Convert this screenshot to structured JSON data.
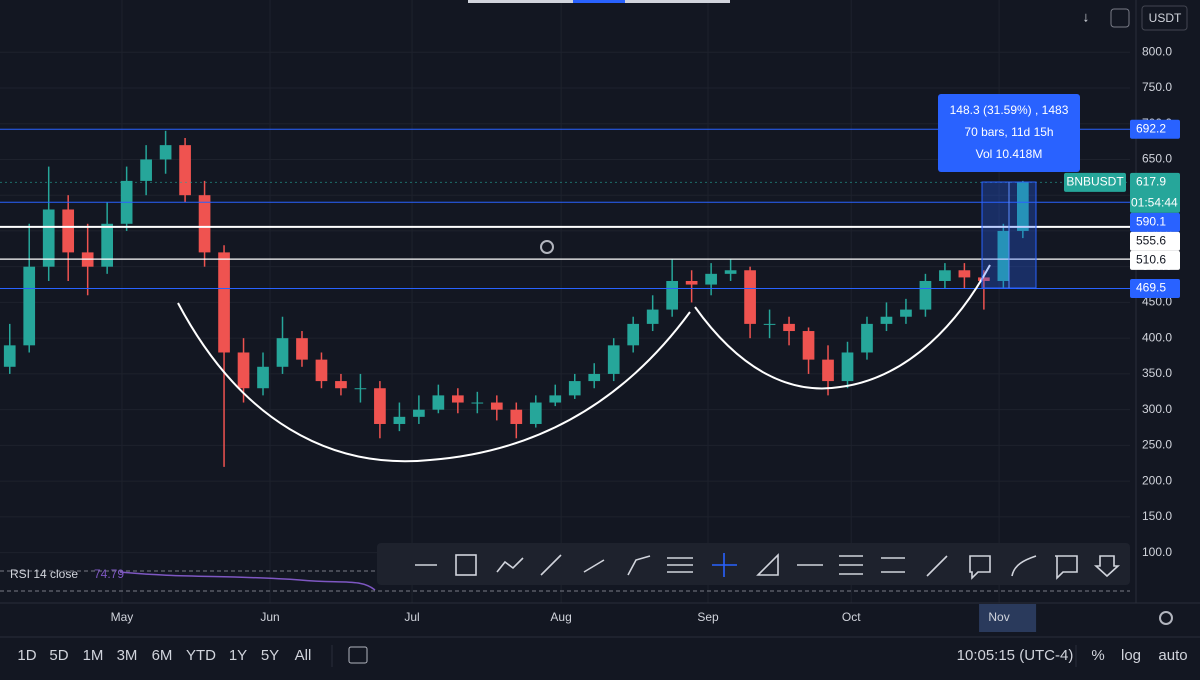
{
  "chart_data": {
    "type": "candlestick",
    "open": [
      360,
      390,
      500,
      580,
      520,
      500,
      560,
      620,
      650,
      670,
      600,
      520,
      380,
      330,
      360,
      400,
      370,
      340,
      330,
      330,
      280,
      290,
      300,
      320,
      310,
      310,
      300,
      280,
      310,
      320,
      340,
      350,
      390,
      420,
      440,
      480,
      475,
      490,
      495,
      420,
      420,
      410,
      370,
      340,
      380,
      420,
      430,
      440,
      480,
      495,
      485,
      480,
      550
    ],
    "high": [
      420,
      560,
      640,
      600,
      560,
      590,
      640,
      670,
      690,
      680,
      620,
      530,
      400,
      380,
      430,
      410,
      380,
      350,
      350,
      340,
      310,
      320,
      335,
      330,
      325,
      320,
      310,
      320,
      335,
      350,
      365,
      400,
      430,
      460,
      510,
      495,
      505,
      510,
      500,
      440,
      430,
      415,
      390,
      395,
      430,
      450,
      455,
      490,
      505,
      505,
      495,
      560,
      620
    ],
    "low": [
      350,
      380,
      480,
      480,
      460,
      490,
      550,
      600,
      630,
      590,
      500,
      220,
      310,
      320,
      350,
      360,
      330,
      320,
      310,
      260,
      270,
      280,
      295,
      295,
      295,
      285,
      260,
      275,
      305,
      315,
      330,
      340,
      380,
      410,
      430,
      450,
      460,
      480,
      400,
      400,
      390,
      350,
      320,
      330,
      370,
      410,
      420,
      430,
      470,
      470,
      440,
      470,
      540
    ],
    "close": [
      390,
      500,
      580,
      520,
      500,
      560,
      620,
      650,
      670,
      600,
      520,
      380,
      330,
      360,
      400,
      370,
      340,
      330,
      330,
      280,
      290,
      300,
      320,
      310,
      310,
      300,
      280,
      310,
      320,
      340,
      350,
      390,
      420,
      440,
      480,
      475,
      490,
      495,
      420,
      420,
      410,
      370,
      340,
      380,
      420,
      430,
      440,
      480,
      495,
      485,
      480,
      550,
      617.9
    ],
    "up_color": "#26a69a",
    "down_color": "#ef5350",
    "xlim": [
      -0.5,
      57.5
    ],
    "xticks": [
      {
        "value": 5.76,
        "label": "May"
      },
      {
        "value": 13.36,
        "label": "Jun"
      },
      {
        "value": 20.65,
        "label": "Jul"
      },
      {
        "value": 28.3,
        "label": "Aug"
      },
      {
        "value": 35.84,
        "label": "Sep"
      },
      {
        "value": 43.19,
        "label": "Oct"
      },
      {
        "value": 50.78,
        "label": "Nov"
      }
    ],
    "ylim": [
      45,
      873
    ],
    "yticks": [
      {
        "value": 100,
        "label": "100.0"
      },
      {
        "value": 150,
        "label": "150.0"
      },
      {
        "value": 200,
        "label": "200.0"
      },
      {
        "value": 250,
        "label": "250.0"
      },
      {
        "value": 300,
        "label": "300.0"
      },
      {
        "value": 350,
        "label": "350.0"
      },
      {
        "value": 400,
        "label": "400.0"
      },
      {
        "value": 450,
        "label": "450.0"
      },
      {
        "value": 500,
        "label": "500.0"
      },
      {
        "value": 550,
        "label": "550.0"
      },
      {
        "value": 600,
        "label": "600.0"
      },
      {
        "value": 650,
        "label": "650.0"
      },
      {
        "value": 700,
        "label": "700.0"
      },
      {
        "value": 750,
        "label": "750.0"
      },
      {
        "value": 800,
        "label": "800.0"
      }
    ],
    "grid": true,
    "price_lines": [
      {
        "value": 692.2,
        "color": "#2962ff"
      },
      {
        "value": 617.9,
        "color": "#26a69a"
      },
      {
        "value": 590.1,
        "color": "#2962ff"
      },
      {
        "value": 555.6,
        "color": "#ffffff"
      },
      {
        "value": 510.6,
        "color": "#ffffff"
      },
      {
        "value": 469.5,
        "color": "#2962ff"
      }
    ],
    "symbol": "BNBUSDT",
    "countdown": "01:54:44",
    "measure": [
      "148.3 (31.59%) , 1483",
      "70 bars, 11d 15h",
      "Vol 10.418M"
    ],
    "currency": "USDT",
    "rsi": {
      "label": "RSI 14 close",
      "value": 74.79
    }
  },
  "toolbar": {
    "ranges": [
      "1D",
      "5D",
      "1M",
      "3M",
      "6M",
      "YTD",
      "1Y",
      "5Y",
      "All"
    ],
    "clock": "10:05:15 (UTC-4)",
    "percent": "%",
    "log": "log",
    "auto": "auto"
  }
}
